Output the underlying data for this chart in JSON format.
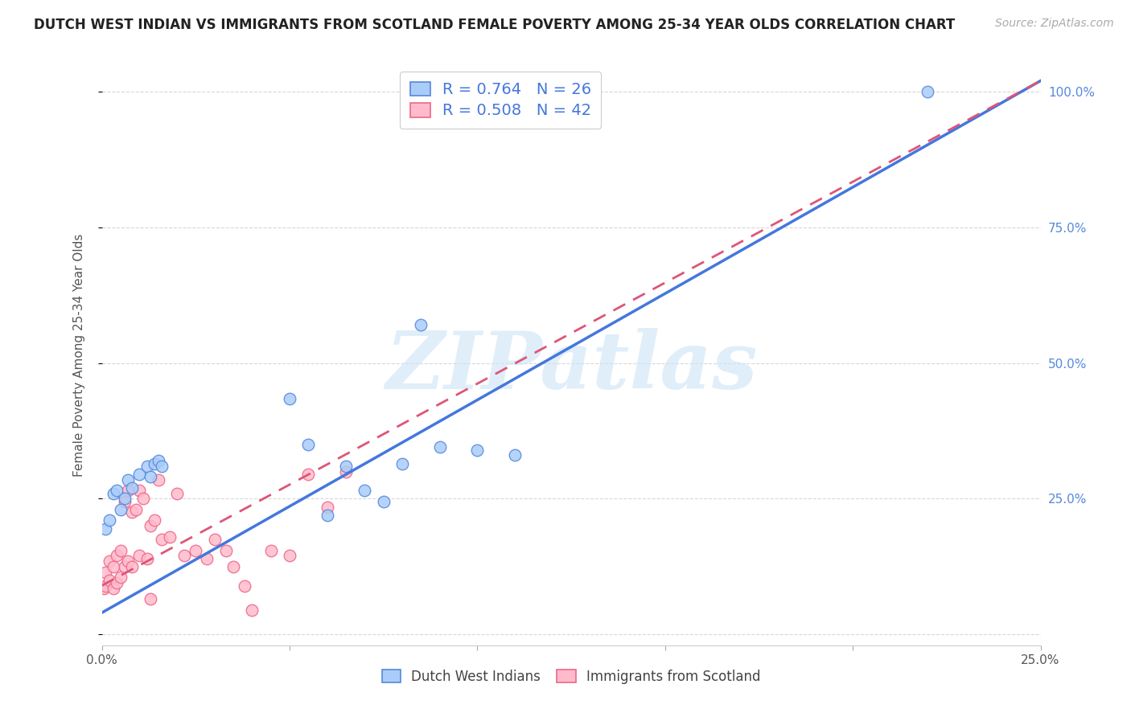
{
  "title": "DUTCH WEST INDIAN VS IMMIGRANTS FROM SCOTLAND FEMALE POVERTY AMONG 25-34 YEAR OLDS CORRELATION CHART",
  "source": "Source: ZipAtlas.com",
  "ylabel": "Female Poverty Among 25-34 Year Olds",
  "xlim": [
    0.0,
    0.25
  ],
  "ylim": [
    -0.02,
    1.05
  ],
  "x_ticks": [
    0.0,
    0.05,
    0.1,
    0.15,
    0.2,
    0.25
  ],
  "y_ticks": [
    0.0,
    0.25,
    0.5,
    0.75,
    1.0
  ],
  "y_tick_labels_right": [
    "",
    "25.0%",
    "50.0%",
    "75.0%",
    "100.0%"
  ],
  "background_color": "#ffffff",
  "grid_color": "#d8d8d8",
  "watermark_text": "ZIPatlas",
  "series1_label": "Dutch West Indians",
  "series1_color": "#aaccf8",
  "series1_edge_color": "#5588dd",
  "series1_line_color": "#4477dd",
  "series1_R": 0.764,
  "series1_N": 26,
  "series2_label": "Immigrants from Scotland",
  "series2_color": "#ffbbcc",
  "series2_edge_color": "#ee6688",
  "series2_line_color": "#dd5577",
  "series2_R": 0.508,
  "series2_N": 42,
  "series1_x": [
    0.001,
    0.002,
    0.003,
    0.004,
    0.005,
    0.006,
    0.007,
    0.008,
    0.01,
    0.012,
    0.013,
    0.014,
    0.015,
    0.016,
    0.05,
    0.055,
    0.06,
    0.065,
    0.07,
    0.075,
    0.08,
    0.085,
    0.09,
    0.1,
    0.11,
    0.22
  ],
  "series1_y": [
    0.195,
    0.21,
    0.26,
    0.265,
    0.23,
    0.25,
    0.285,
    0.27,
    0.295,
    0.31,
    0.29,
    0.315,
    0.32,
    0.31,
    0.435,
    0.35,
    0.22,
    0.31,
    0.265,
    0.245,
    0.315,
    0.57,
    0.345,
    0.34,
    0.33,
    1.0
  ],
  "series2_x": [
    0.0005,
    0.001,
    0.001,
    0.002,
    0.002,
    0.003,
    0.003,
    0.004,
    0.004,
    0.005,
    0.005,
    0.006,
    0.006,
    0.007,
    0.007,
    0.008,
    0.008,
    0.009,
    0.01,
    0.01,
    0.011,
    0.012,
    0.013,
    0.013,
    0.014,
    0.015,
    0.016,
    0.018,
    0.02,
    0.022,
    0.025,
    0.028,
    0.03,
    0.033,
    0.035,
    0.038,
    0.04,
    0.045,
    0.05,
    0.055,
    0.06,
    0.065
  ],
  "series2_y": [
    0.085,
    0.09,
    0.115,
    0.1,
    0.135,
    0.085,
    0.125,
    0.095,
    0.145,
    0.105,
    0.155,
    0.125,
    0.245,
    0.265,
    0.135,
    0.125,
    0.225,
    0.23,
    0.145,
    0.265,
    0.25,
    0.14,
    0.2,
    0.065,
    0.21,
    0.285,
    0.175,
    0.18,
    0.26,
    0.145,
    0.155,
    0.14,
    0.175,
    0.155,
    0.125,
    0.09,
    0.045,
    0.155,
    0.145,
    0.295,
    0.235,
    0.3
  ],
  "line1_x0": 0.0,
  "line1_y0": 0.04,
  "line1_x1": 0.25,
  "line1_y1": 1.02,
  "line2_x0": 0.0,
  "line2_y0": 0.09,
  "line2_x1": 0.25,
  "line2_y1": 1.02,
  "title_fontsize": 12,
  "source_fontsize": 10,
  "tick_fontsize": 11,
  "legend_fontsize": 13
}
